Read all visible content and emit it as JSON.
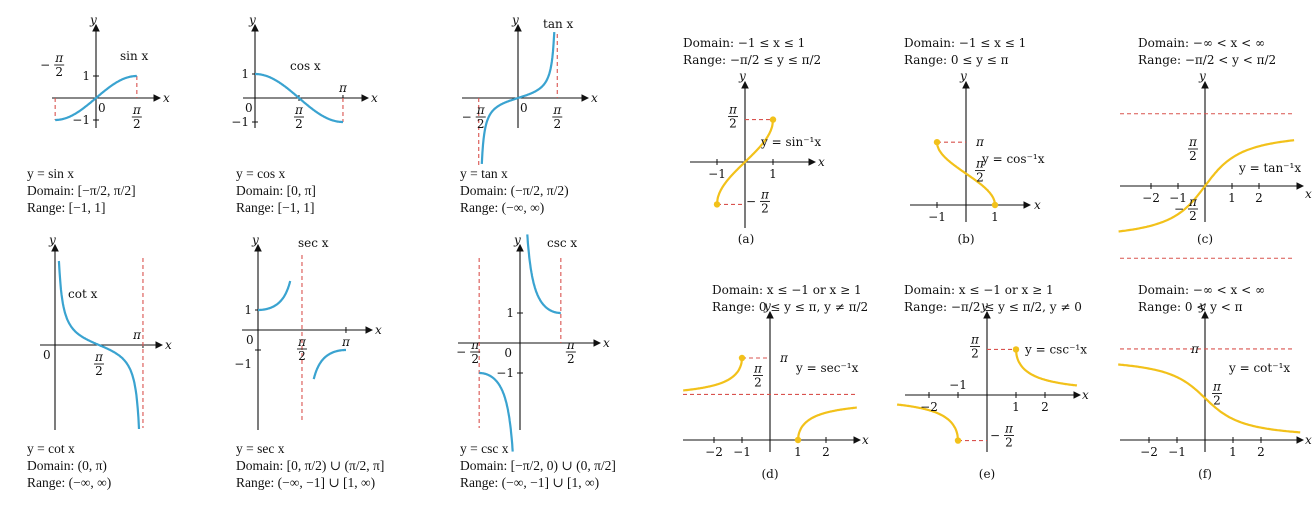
{
  "colors": {
    "curve_blue": "#3aa3d0",
    "curve_yellow": "#f2c11a",
    "asymptote": "#d9534f",
    "axis": "#111111"
  },
  "trig_panels": [
    {
      "id": "sin",
      "label": "sin x",
      "caption": [
        "y = sin x",
        "Domain: [−π/2, π/2]",
        "Range: [−1, 1]"
      ]
    },
    {
      "id": "cos",
      "label": "cos x",
      "caption": [
        "y = cos x",
        "Domain: [0, π]",
        "Range: [−1, 1]"
      ]
    },
    {
      "id": "tan",
      "label": "tan x",
      "caption": [
        "y = tan x",
        "Domain: (−π/2, π/2)",
        "Range: (−∞, ∞)"
      ]
    },
    {
      "id": "cot",
      "label": "cot x",
      "caption": [
        "y = cot x",
        "Domain: (0, π)",
        "Range: (−∞, ∞)"
      ]
    },
    {
      "id": "sec",
      "label": "sec x",
      "caption": [
        "y = sec x",
        "Domain: [0, π/2) ∪ (π/2, π]",
        "Range: (−∞, −1] ∪ [1, ∞)"
      ]
    },
    {
      "id": "csc",
      "label": "csc x",
      "caption": [
        "y = csc x",
        "Domain: [−π/2, 0) ∪ (0, π/2]",
        "Range: (−∞, −1] ∪ [1, ∞)"
      ]
    }
  ],
  "inverse_panels": [
    {
      "id": "a",
      "label": "y = sin⁻¹x",
      "letter": "(a)",
      "domain": "Domain: −1 ≤ x ≤ 1",
      "range": "Range: −π/2 ≤ y ≤ π/2"
    },
    {
      "id": "b",
      "label": "y = cos⁻¹x",
      "letter": "(b)",
      "domain": "Domain: −1 ≤ x ≤ 1",
      "range": "Range: 0 ≤ y ≤ π"
    },
    {
      "id": "c",
      "label": "y = tan⁻¹x",
      "letter": "(c)",
      "domain": "Domain: −∞ < x < ∞",
      "range": "Range: −π/2 < y < π/2"
    },
    {
      "id": "d",
      "label": "y = sec⁻¹x",
      "letter": "(d)",
      "domain": "Domain: x ≤ −1 or x ≥ 1",
      "range": "Range: 0 ≤ y ≤ π, y ≠ π/2"
    },
    {
      "id": "e",
      "label": "y = csc⁻¹x",
      "letter": "(e)",
      "domain": "Domain: x ≤ −1 or x ≥ 1",
      "range": "Range: −π/2 ≤ y ≤ π/2, y ≠ 0"
    },
    {
      "id": "f",
      "label": "y = cot⁻¹x",
      "letter": "(f)",
      "domain": "Domain: −∞ < x < ∞",
      "range": "Range: 0 < y < π"
    }
  ],
  "ticks": {
    "x": "x",
    "y": "y",
    "zero": "0",
    "one": "1",
    "neg_one": "−1",
    "two": "2",
    "neg_two": "−2",
    "pi": "π",
    "pi_over_2_num": "π",
    "pi_over_2_den": "2",
    "minus": "−"
  }
}
